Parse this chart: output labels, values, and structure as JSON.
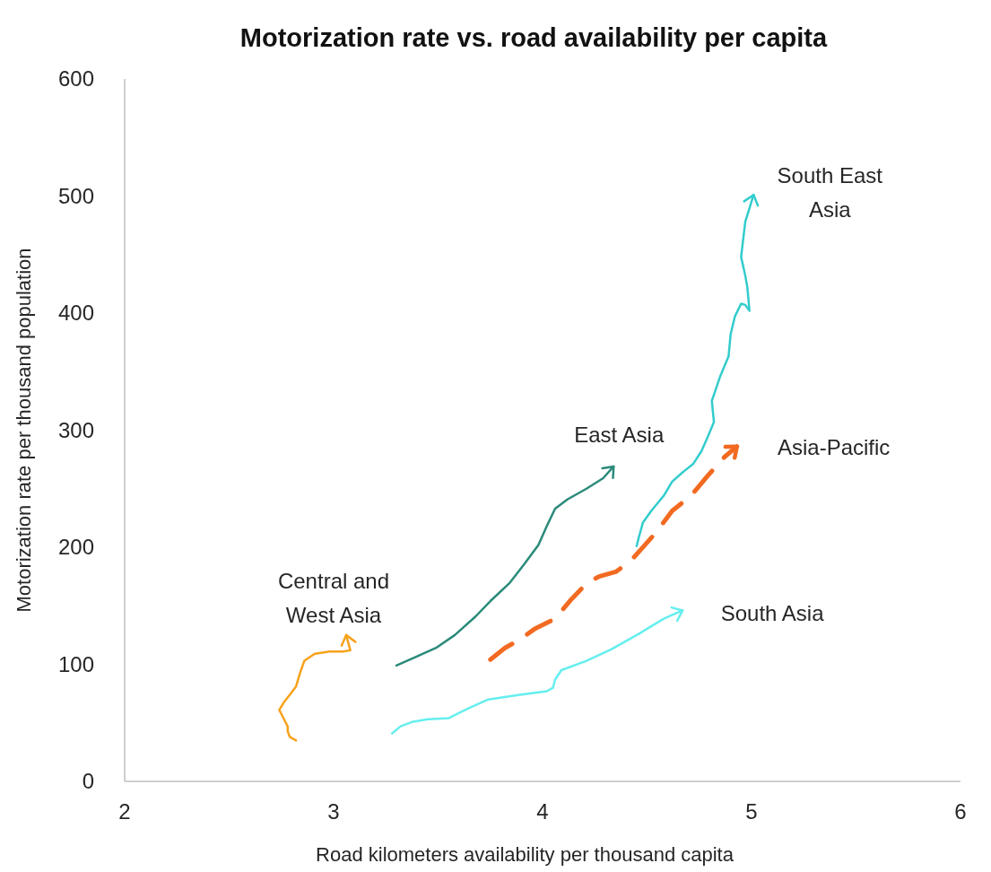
{
  "chart_data": {
    "type": "line",
    "title": "Motorization rate vs. road availability per capita",
    "xlabel": "Road kilometers availability per thousand capita",
    "ylabel": "Motorization rate per thousand population",
    "xlim": [
      2,
      6
    ],
    "xticks": [
      2,
      3,
      4,
      5,
      6
    ],
    "ylim": [
      0,
      600
    ],
    "yticks": [
      0,
      100,
      200,
      300,
      400,
      500,
      600
    ],
    "series": [
      {
        "name": "Central and West Asia",
        "color": "#f7a21b",
        "x": [
          2.82,
          2.79,
          2.78,
          2.78,
          2.76,
          2.74,
          2.76,
          2.79,
          2.82,
          2.84,
          2.86,
          2.91,
          2.98,
          3.05,
          3.08,
          3.06
        ],
        "values": [
          35,
          38,
          43,
          47,
          54,
          61,
          67,
          74,
          81,
          93,
          103,
          109,
          111,
          111,
          112,
          125
        ]
      },
      {
        "name": "East Asia",
        "color": "#2a8a7a",
        "x": [
          3.3,
          3.39,
          3.49,
          3.58,
          3.68,
          3.75,
          3.84,
          3.91,
          3.98,
          4.02,
          4.06,
          4.12,
          4.21,
          4.29,
          4.34
        ],
        "values": [
          99,
          106,
          114,
          125,
          141,
          154,
          169,
          185,
          202,
          218,
          233,
          241,
          250,
          259,
          269
        ]
      },
      {
        "name": "South East Asia",
        "color": "#33cccc",
        "x": [
          4.45,
          4.46,
          4.48,
          4.52,
          4.58,
          4.62,
          4.67,
          4.72,
          4.76,
          4.79,
          4.82,
          4.81,
          4.85,
          4.89,
          4.9,
          4.92,
          4.95,
          4.97,
          4.99,
          4.98,
          4.97,
          4.95,
          4.96,
          4.97,
          5.01
        ],
        "values": [
          201,
          208,
          221,
          231,
          244,
          256,
          264,
          271,
          282,
          294,
          307,
          325,
          346,
          363,
          382,
          397,
          408,
          407,
          402,
          422,
          432,
          448,
          463,
          478,
          501
        ]
      },
      {
        "name": "Asia-Pacific",
        "color": "#f26a21",
        "line_style": "dashed",
        "x": [
          3.75,
          3.82,
          3.89,
          3.96,
          4.06,
          4.14,
          4.21,
          4.27,
          4.35,
          4.42,
          4.47,
          4.54,
          4.62,
          4.71,
          4.79,
          4.87,
          4.93
        ],
        "values": [
          104,
          114,
          121,
          130,
          139,
          156,
          169,
          175,
          179,
          188,
          198,
          212,
          231,
          244,
          261,
          277,
          286
        ]
      },
      {
        "name": "South Asia",
        "color": "#66eeee",
        "x": [
          3.28,
          3.32,
          3.38,
          3.45,
          3.55,
          3.64,
          3.74,
          3.89,
          4.02,
          4.05,
          4.06,
          4.09,
          4.21,
          4.33,
          4.46,
          4.58,
          4.67
        ],
        "values": [
          41,
          47,
          51,
          53,
          54,
          62,
          70,
          74,
          77,
          80,
          87,
          95,
          103,
          113,
          126,
          139,
          146
        ]
      }
    ]
  }
}
